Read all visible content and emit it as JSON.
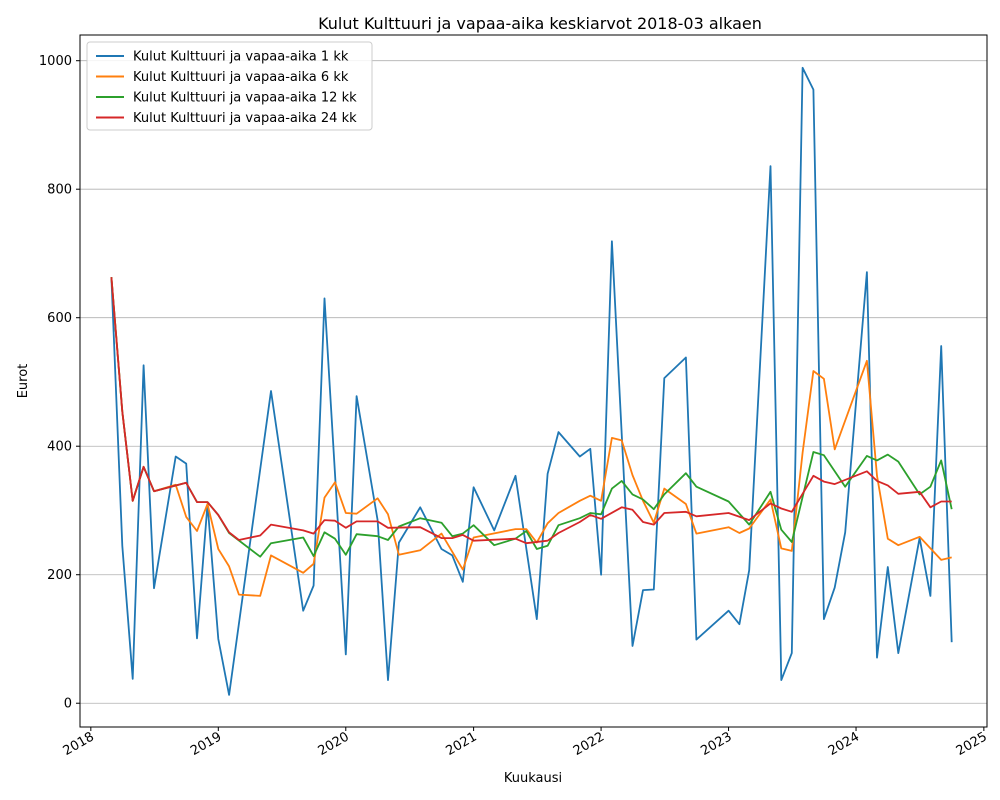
{
  "chart_data": {
    "type": "line",
    "title": "Kulut Kulttuuri ja vapaa-aika keskiarvot 2018-03 alkaen",
    "xlabel": "Kuukausi",
    "ylabel": "Eurot",
    "x_ticks": [
      "2018",
      "2019",
      "2020",
      "2021",
      "2022",
      "2023",
      "2024",
      "2025"
    ],
    "y_ticks": [
      0,
      200,
      400,
      600,
      800,
      1000
    ],
    "xlim": [
      "2017-12-01",
      "2025-01-10"
    ],
    "ylim": [
      -37,
      1040
    ],
    "grid": "horizontal",
    "legend_position": "top-left",
    "series": [
      {
        "name": "Kulut Kulttuuri ja vapaa-aika 1 kk",
        "color": "#1f77b4",
        "points": [
          [
            "2018-03-01",
            663
          ],
          [
            "2018-04-01",
            245
          ],
          [
            "2018-05-01",
            38
          ],
          [
            "2018-06-01",
            526
          ],
          [
            "2018-07-01",
            179
          ],
          [
            "2018-09-01",
            384
          ],
          [
            "2018-10-01",
            373
          ],
          [
            "2018-11-01",
            101
          ],
          [
            "2018-12-01",
            310
          ],
          [
            "2019-01-01",
            100
          ],
          [
            "2019-02-01",
            13
          ],
          [
            "2019-06-01",
            486
          ],
          [
            "2019-09-01",
            144
          ],
          [
            "2019-10-01",
            183
          ],
          [
            "2019-11-01",
            630
          ],
          [
            "2020-01-01",
            76
          ],
          [
            "2020-02-01",
            478
          ],
          [
            "2020-04-01",
            285
          ],
          [
            "2020-05-01",
            36
          ],
          [
            "2020-06-01",
            250
          ],
          [
            "2020-08-01",
            305
          ],
          [
            "2020-10-01",
            240
          ],
          [
            "2020-11-01",
            230
          ],
          [
            "2020-12-01",
            189
          ],
          [
            "2021-01-01",
            336
          ],
          [
            "2021-03-01",
            269
          ],
          [
            "2021-05-01",
            354
          ],
          [
            "2021-07-01",
            131
          ],
          [
            "2021-08-01",
            357
          ],
          [
            "2021-09-01",
            422
          ],
          [
            "2021-11-01",
            384
          ],
          [
            "2021-12-01",
            396
          ],
          [
            "2022-01-01",
            200
          ],
          [
            "2022-02-01",
            719
          ],
          [
            "2022-04-01",
            89
          ],
          [
            "2022-05-01",
            176
          ],
          [
            "2022-06-01",
            177
          ],
          [
            "2022-07-01",
            506
          ],
          [
            "2022-09-01",
            538
          ],
          [
            "2022-10-01",
            99
          ],
          [
            "2023-01-01",
            144
          ],
          [
            "2023-02-01",
            123
          ],
          [
            "2023-03-01",
            207
          ],
          [
            "2023-05-01",
            836
          ],
          [
            "2023-06-01",
            36
          ],
          [
            "2023-07-01",
            78
          ],
          [
            "2023-08-01",
            989
          ],
          [
            "2023-09-01",
            955
          ],
          [
            "2023-10-01",
            131
          ],
          [
            "2023-11-01",
            180
          ],
          [
            "2023-12-01",
            266
          ],
          [
            "2024-02-01",
            671
          ],
          [
            "2024-03-01",
            71
          ],
          [
            "2024-04-01",
            212
          ],
          [
            "2024-05-01",
            78
          ],
          [
            "2024-07-01",
            257
          ],
          [
            "2024-08-01",
            167
          ],
          [
            "2024-09-01",
            556
          ],
          [
            "2024-10-01",
            95
          ]
        ]
      },
      {
        "name": "Kulut Kulttuuri ja vapaa-aika 6 kk",
        "color": "#ff7f0e",
        "points": [
          [
            "2018-03-01",
            663
          ],
          [
            "2018-04-01",
            454
          ],
          [
            "2018-05-01",
            315
          ],
          [
            "2018-06-01",
            368
          ],
          [
            "2018-07-01",
            330
          ],
          [
            "2018-09-01",
            340
          ],
          [
            "2018-10-01",
            290
          ],
          [
            "2018-11-01",
            268
          ],
          [
            "2018-12-01",
            310
          ],
          [
            "2019-01-01",
            240
          ],
          [
            "2019-02-01",
            213
          ],
          [
            "2019-03-01",
            169
          ],
          [
            "2019-05-01",
            167
          ],
          [
            "2019-06-01",
            230
          ],
          [
            "2019-09-01",
            203
          ],
          [
            "2019-10-01",
            217
          ],
          [
            "2019-11-01",
            320
          ],
          [
            "2019-12-01",
            344
          ],
          [
            "2020-01-01",
            296
          ],
          [
            "2020-02-01",
            295
          ],
          [
            "2020-04-01",
            319
          ],
          [
            "2020-05-01",
            294
          ],
          [
            "2020-06-01",
            231
          ],
          [
            "2020-08-01",
            238
          ],
          [
            "2020-10-01",
            264
          ],
          [
            "2020-12-01",
            208
          ],
          [
            "2021-01-01",
            258
          ],
          [
            "2021-05-01",
            271
          ],
          [
            "2021-06-01",
            271
          ],
          [
            "2021-07-01",
            250
          ],
          [
            "2021-08-01",
            280
          ],
          [
            "2021-09-01",
            296
          ],
          [
            "2021-11-01",
            315
          ],
          [
            "2021-12-01",
            323
          ],
          [
            "2022-01-01",
            315
          ],
          [
            "2022-02-01",
            413
          ],
          [
            "2022-03-01",
            409
          ],
          [
            "2022-04-01",
            355
          ],
          [
            "2022-05-01",
            315
          ],
          [
            "2022-06-01",
            281
          ],
          [
            "2022-07-01",
            334
          ],
          [
            "2022-09-01",
            310
          ],
          [
            "2022-10-01",
            264
          ],
          [
            "2023-01-01",
            274
          ],
          [
            "2023-02-01",
            265
          ],
          [
            "2023-03-01",
            272
          ],
          [
            "2023-05-01",
            317
          ],
          [
            "2023-06-01",
            241
          ],
          [
            "2023-07-01",
            237
          ],
          [
            "2023-08-01",
            390
          ],
          [
            "2023-09-01",
            517
          ],
          [
            "2023-10-01",
            505
          ],
          [
            "2023-11-01",
            395
          ],
          [
            "2024-02-01",
            533
          ],
          [
            "2024-03-01",
            354
          ],
          [
            "2024-04-01",
            256
          ],
          [
            "2024-05-01",
            246
          ],
          [
            "2024-07-01",
            259
          ],
          [
            "2024-09-01",
            223
          ],
          [
            "2024-10-01",
            227
          ]
        ]
      },
      {
        "name": "Kulut Kulttuuri ja vapaa-aika 12 kk",
        "color": "#2ca02c",
        "points": [
          [
            "2018-03-01",
            663
          ],
          [
            "2018-04-01",
            454
          ],
          [
            "2018-05-01",
            315
          ],
          [
            "2018-06-01",
            368
          ],
          [
            "2018-07-01",
            330
          ],
          [
            "2018-10-01",
            343
          ],
          [
            "2018-11-01",
            313
          ],
          [
            "2018-12-01",
            313
          ],
          [
            "2019-01-01",
            293
          ],
          [
            "2019-02-01",
            265
          ],
          [
            "2019-05-01",
            228
          ],
          [
            "2019-06-01",
            249
          ],
          [
            "2019-09-01",
            258
          ],
          [
            "2019-10-01",
            229
          ],
          [
            "2019-11-01",
            266
          ],
          [
            "2019-12-01",
            256
          ],
          [
            "2020-01-01",
            231
          ],
          [
            "2020-02-01",
            263
          ],
          [
            "2020-04-01",
            260
          ],
          [
            "2020-05-01",
            254
          ],
          [
            "2020-06-01",
            275
          ],
          [
            "2020-08-01",
            288
          ],
          [
            "2020-10-01",
            281
          ],
          [
            "2020-11-01",
            260
          ],
          [
            "2020-12-01",
            264
          ],
          [
            "2021-01-01",
            277
          ],
          [
            "2021-03-01",
            246
          ],
          [
            "2021-05-01",
            256
          ],
          [
            "2021-06-01",
            268
          ],
          [
            "2021-07-01",
            240
          ],
          [
            "2021-08-01",
            245
          ],
          [
            "2021-09-01",
            277
          ],
          [
            "2021-11-01",
            288
          ],
          [
            "2021-12-01",
            296
          ],
          [
            "2022-01-01",
            294
          ],
          [
            "2022-02-01",
            334
          ],
          [
            "2022-03-01",
            346
          ],
          [
            "2022-04-01",
            325
          ],
          [
            "2022-05-01",
            317
          ],
          [
            "2022-06-01",
            302
          ],
          [
            "2022-07-01",
            325
          ],
          [
            "2022-09-01",
            358
          ],
          [
            "2022-10-01",
            337
          ],
          [
            "2023-01-01",
            314
          ],
          [
            "2023-03-01",
            278
          ],
          [
            "2023-05-01",
            329
          ],
          [
            "2023-06-01",
            270
          ],
          [
            "2023-07-01",
            251
          ],
          [
            "2023-09-01",
            391
          ],
          [
            "2023-10-01",
            386
          ],
          [
            "2023-12-01",
            337
          ],
          [
            "2024-02-01",
            385
          ],
          [
            "2024-03-01",
            378
          ],
          [
            "2024-04-01",
            387
          ],
          [
            "2024-05-01",
            376
          ],
          [
            "2024-07-01",
            325
          ],
          [
            "2024-08-01",
            337
          ],
          [
            "2024-09-01",
            378
          ],
          [
            "2024-10-01",
            302
          ]
        ]
      },
      {
        "name": "Kulut Kulttuuri ja vapaa-aika 24 kk",
        "color": "#d62728",
        "points": [
          [
            "2018-03-01",
            663
          ],
          [
            "2018-04-01",
            454
          ],
          [
            "2018-05-01",
            315
          ],
          [
            "2018-06-01",
            368
          ],
          [
            "2018-07-01",
            330
          ],
          [
            "2018-10-01",
            343
          ],
          [
            "2018-11-01",
            313
          ],
          [
            "2018-12-01",
            313
          ],
          [
            "2019-01-01",
            293
          ],
          [
            "2019-02-01",
            266
          ],
          [
            "2019-03-01",
            254
          ],
          [
            "2019-05-01",
            261
          ],
          [
            "2019-06-01",
            278
          ],
          [
            "2019-09-01",
            269
          ],
          [
            "2019-10-01",
            264
          ],
          [
            "2019-11-01",
            285
          ],
          [
            "2019-12-01",
            284
          ],
          [
            "2020-01-01",
            273
          ],
          [
            "2020-02-01",
            283
          ],
          [
            "2020-04-01",
            283
          ],
          [
            "2020-05-01",
            273
          ],
          [
            "2020-08-01",
            274
          ],
          [
            "2020-10-01",
            257
          ],
          [
            "2020-11-01",
            257
          ],
          [
            "2020-12-01",
            262
          ],
          [
            "2021-01-01",
            253
          ],
          [
            "2021-05-01",
            256
          ],
          [
            "2021-06-01",
            249
          ],
          [
            "2021-08-01",
            253
          ],
          [
            "2021-09-01",
            265
          ],
          [
            "2021-11-01",
            282
          ],
          [
            "2021-12-01",
            293
          ],
          [
            "2022-01-01",
            287
          ],
          [
            "2022-03-01",
            305
          ],
          [
            "2022-04-01",
            301
          ],
          [
            "2022-05-01",
            282
          ],
          [
            "2022-06-01",
            278
          ],
          [
            "2022-07-01",
            296
          ],
          [
            "2022-09-01",
            298
          ],
          [
            "2022-10-01",
            291
          ],
          [
            "2023-01-01",
            296
          ],
          [
            "2023-03-01",
            285
          ],
          [
            "2023-05-01",
            311
          ],
          [
            "2023-06-01",
            303
          ],
          [
            "2023-07-01",
            298
          ],
          [
            "2023-09-01",
            354
          ],
          [
            "2023-10-01",
            345
          ],
          [
            "2023-11-01",
            341
          ],
          [
            "2024-02-01",
            361
          ],
          [
            "2024-03-01",
            346
          ],
          [
            "2024-04-01",
            339
          ],
          [
            "2024-05-01",
            326
          ],
          [
            "2024-07-01",
            329
          ],
          [
            "2024-08-01",
            305
          ],
          [
            "2024-09-01",
            314
          ],
          [
            "2024-10-01",
            314
          ]
        ]
      }
    ]
  }
}
